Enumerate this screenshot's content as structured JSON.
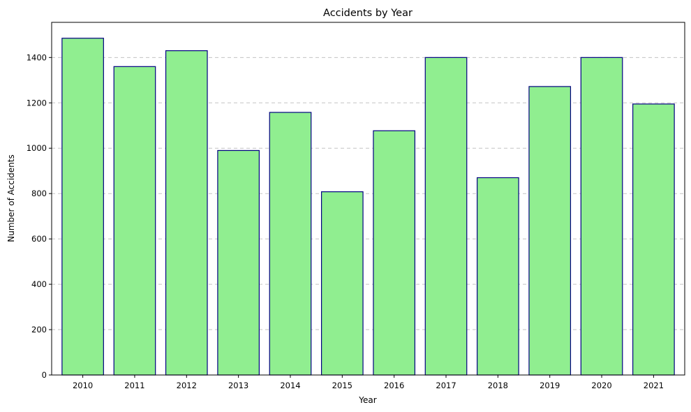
{
  "chart_data": {
    "type": "bar",
    "title": "Accidents by Year",
    "xlabel": "Year",
    "ylabel": "Number of Accidents",
    "categories": [
      "2010",
      "2011",
      "2012",
      "2013",
      "2014",
      "2015",
      "2016",
      "2017",
      "2018",
      "2019",
      "2020",
      "2021"
    ],
    "values": [
      1485,
      1360,
      1430,
      990,
      1158,
      808,
      1077,
      1400,
      870,
      1272,
      1400,
      1195
    ],
    "ylim": [
      0,
      1555
    ],
    "yticks": [
      0,
      200,
      400,
      600,
      800,
      1000,
      1200,
      1400
    ],
    "grid": "y",
    "colors": {
      "bar_fill": "#90ee90",
      "bar_edge": "#000080"
    }
  }
}
